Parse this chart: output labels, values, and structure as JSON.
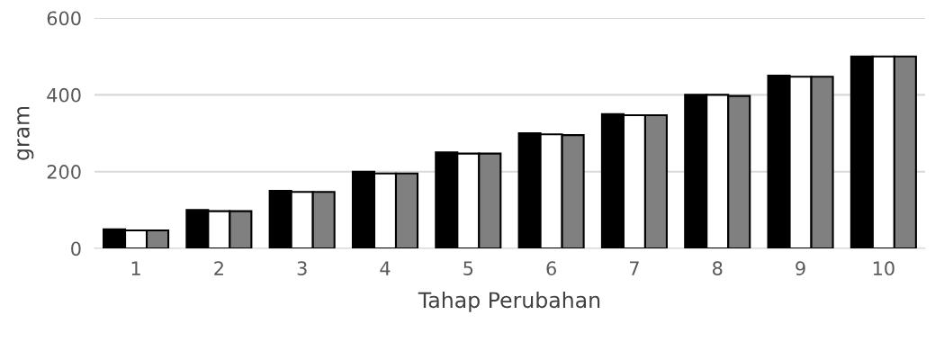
{
  "chart_data": {
    "type": "bar",
    "xlabel": "Tahap Perubahan",
    "ylabel": "gram",
    "categories": [
      "1",
      "2",
      "3",
      "4",
      "5",
      "6",
      "7",
      "8",
      "9",
      "10"
    ],
    "series": [
      {
        "color": "#000000",
        "values": [
          50,
          100,
          150,
          200,
          250,
          300,
          350,
          400,
          450,
          500
        ]
      },
      {
        "color": "#ffffff",
        "values": [
          47,
          97,
          147,
          195,
          247,
          297,
          347,
          400,
          447,
          500
        ]
      },
      {
        "color": "#808080",
        "values": [
          47,
          97,
          147,
          195,
          247,
          295,
          347,
          397,
          447,
          500
        ]
      }
    ],
    "ylim": [
      0,
      600
    ],
    "yticks": [
      0,
      200,
      400,
      600
    ],
    "grid": "y",
    "legend": false
  }
}
